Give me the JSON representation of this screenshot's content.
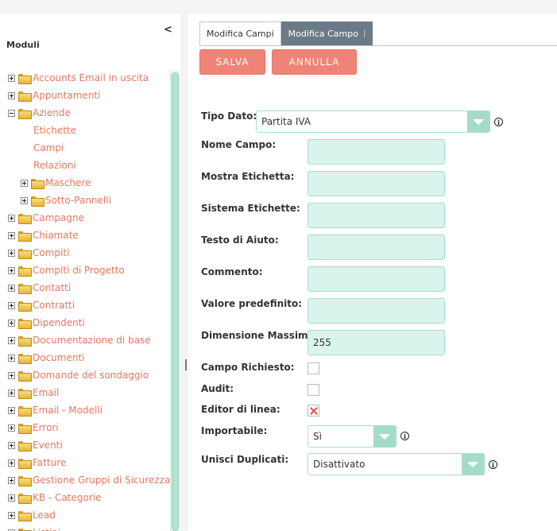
{
  "sidebar": {
    "collapse_glyph": "<",
    "title": "Moduli",
    "items": [
      {
        "label": "Accounts Email in uscita",
        "level": 0,
        "expander": "plus"
      },
      {
        "label": "Appuntamenti",
        "level": 0,
        "expander": "plus"
      },
      {
        "label": "Aziende",
        "level": 0,
        "expander": "minus"
      },
      {
        "label": "Etichette",
        "level": 1,
        "expander": "none"
      },
      {
        "label": "Campi",
        "level": 1,
        "expander": "none"
      },
      {
        "label": "Relazioni",
        "level": 1,
        "expander": "none"
      },
      {
        "label": "Maschere",
        "level": 1,
        "expander": "plus"
      },
      {
        "label": "Sotto-Pannelli",
        "level": 1,
        "expander": "plus"
      },
      {
        "label": "Campagne",
        "level": 0,
        "expander": "plus"
      },
      {
        "label": "Chiamate",
        "level": 0,
        "expander": "plus"
      },
      {
        "label": "Compiti",
        "level": 0,
        "expander": "plus"
      },
      {
        "label": "Compiti di Progetto",
        "level": 0,
        "expander": "plus"
      },
      {
        "label": "Contatti",
        "level": 0,
        "expander": "plus"
      },
      {
        "label": "Contratti",
        "level": 0,
        "expander": "plus"
      },
      {
        "label": "Dipendenti",
        "level": 0,
        "expander": "plus"
      },
      {
        "label": "Documentazione di base",
        "level": 0,
        "expander": "plus"
      },
      {
        "label": "Documenti",
        "level": 0,
        "expander": "plus"
      },
      {
        "label": "Domande del sondaggio",
        "level": 0,
        "expander": "plus"
      },
      {
        "label": "Email",
        "level": 0,
        "expander": "plus"
      },
      {
        "label": "Email - Modelli",
        "level": 0,
        "expander": "plus"
      },
      {
        "label": "Errori",
        "level": 0,
        "expander": "plus"
      },
      {
        "label": "Eventi",
        "level": 0,
        "expander": "plus"
      },
      {
        "label": "Fatture",
        "level": 0,
        "expander": "plus"
      },
      {
        "label": "Gestione Gruppi di Sicurezza",
        "level": 0,
        "expander": "plus"
      },
      {
        "label": "KB - Categorie",
        "level": 0,
        "expander": "plus"
      },
      {
        "label": "Lead",
        "level": 0,
        "expander": "plus"
      },
      {
        "label": "Listini",
        "level": 0,
        "expander": "plus"
      }
    ]
  },
  "tabs": [
    {
      "label": "Modifica Campi",
      "active": false
    },
    {
      "label": "Modifica Campo",
      "active": true,
      "sep": "|"
    }
  ],
  "buttons": {
    "save": "SALVA",
    "cancel": "ANNULLA"
  },
  "form": {
    "tipo_dato": {
      "label": "Tipo Dato:",
      "value": "Partita IVA"
    },
    "fields": [
      {
        "label": "Nome Campo:",
        "value": ""
      },
      {
        "label": "Mostra Etichetta:",
        "value": ""
      },
      {
        "label": "Sistema Etichette:",
        "value": ""
      },
      {
        "label": "Testo di Aiuto:",
        "value": ""
      },
      {
        "label": "Commento:",
        "value": ""
      },
      {
        "label": "Valore predefinito:",
        "value": ""
      },
      {
        "label": "Dimensione Massima:",
        "value": "255"
      }
    ],
    "checkboxes": [
      {
        "label": "Campo Richiesto:",
        "checked": false
      },
      {
        "label": "Audit:",
        "checked": false
      },
      {
        "label": "Editor di linea:",
        "checked": true
      }
    ],
    "importabile": {
      "label": "Importabile:",
      "value": "Sì"
    },
    "unisci_duplicati": {
      "label": "Unisci Duplicati:",
      "value": "Disattivato"
    },
    "info_glyph": "i"
  },
  "colors": {
    "accent": "#f08377",
    "link": "#e6785f",
    "input_bg": "#d9f4ec",
    "tab_active": "#6a7a86"
  }
}
